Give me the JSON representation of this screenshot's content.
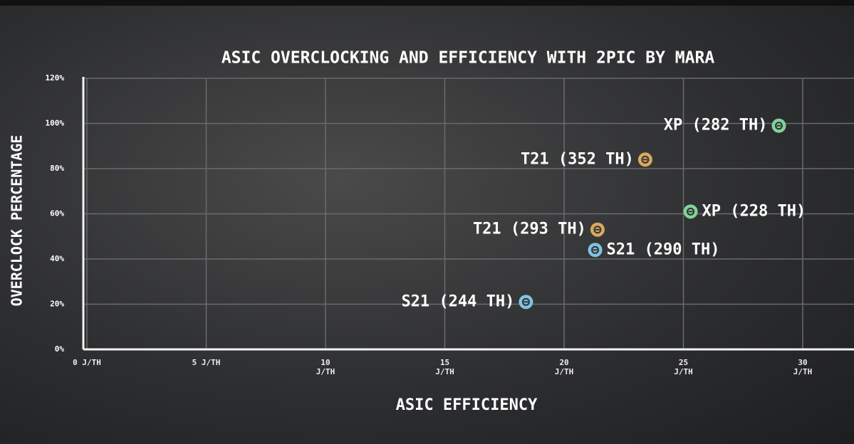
{
  "chart_data": {
    "type": "scatter",
    "title": "ASIC OVERCLOCKING AND EFFICIENCY WITH 2PIC BY MARA",
    "x_label": "ASIC EFFICIENCY",
    "y_label": "OVERCLOCK PERCENTAGE",
    "xlim": [
      0,
      32
    ],
    "ylim": [
      0,
      120
    ],
    "xticks": [
      {
        "value": 0,
        "label": "0 J/TH"
      },
      {
        "value": 5,
        "label": "5 J/TH"
      },
      {
        "value": 10,
        "label": "10 J/TH"
      },
      {
        "value": 15,
        "label": "15 J/TH"
      },
      {
        "value": 20,
        "label": "20 J/TH"
      },
      {
        "value": 25,
        "label": "25 J/TH"
      },
      {
        "value": 30,
        "label": "30 J/TH"
      }
    ],
    "yticks": [
      {
        "value": 0,
        "label": "0%"
      },
      {
        "value": 20,
        "label": "20%"
      },
      {
        "value": 40,
        "label": "40%"
      },
      {
        "value": 60,
        "label": "60%"
      },
      {
        "value": 80,
        "label": "80%"
      },
      {
        "value": 100,
        "label": "100%"
      },
      {
        "value": 120,
        "label": "120%"
      }
    ],
    "grid": true,
    "points": [
      {
        "label": "XP (282 TH)",
        "x": 29,
        "y": 99,
        "color": "#7fd39a"
      },
      {
        "label": "T21 (352 TH)",
        "x": 23.4,
        "y": 84,
        "color": "#d9a860"
      },
      {
        "label": "XP (228 TH)",
        "x": 25.3,
        "y": 61,
        "color": "#7fd39a"
      },
      {
        "label": "T21 (293 TH)",
        "x": 21.4,
        "y": 53,
        "color": "#d9a860"
      },
      {
        "label": "S21 (290 TH)",
        "x": 21.3,
        "y": 44,
        "color": "#7ec4e0"
      },
      {
        "label": "S21 (244 TH)",
        "x": 18.4,
        "y": 21,
        "color": "#7ec4e0"
      }
    ]
  }
}
